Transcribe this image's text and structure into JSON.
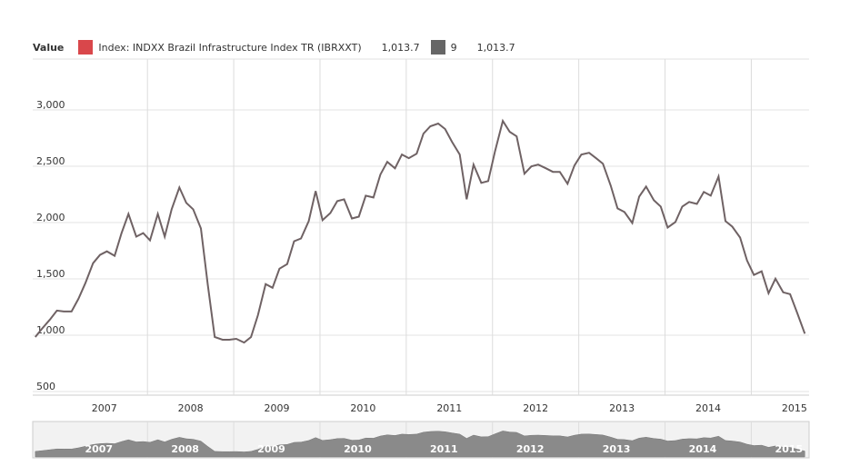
{
  "chart_data": {
    "type": "line",
    "legend_title": "Value",
    "legend": [
      {
        "name": "Index: INDXX Brazil Infrastructure Index TR (IBRXXT)",
        "color": "#d9474b",
        "last_value": {
          "value": 1013.7,
          "label": "1,013.7"
        }
      },
      {
        "name": "9",
        "color": "#666666",
        "last_value": {
          "value": 1013.7,
          "label": "1,013.7"
        }
      }
    ],
    "x": [
      2006.7,
      2006.78,
      2006.87,
      2006.95,
      2007.03,
      2007.12,
      2007.2,
      2007.28,
      2007.37,
      2007.45,
      2007.53,
      2007.62,
      2007.7,
      2007.78,
      2007.87,
      2007.95,
      2008.03,
      2008.12,
      2008.2,
      2008.28,
      2008.37,
      2008.45,
      2008.53,
      2008.62,
      2008.7,
      2008.78,
      2008.87,
      2008.95,
      2009.03,
      2009.12,
      2009.2,
      2009.28,
      2009.37,
      2009.45,
      2009.53,
      2009.62,
      2009.7,
      2009.78,
      2009.87,
      2009.95,
      2010.03,
      2010.12,
      2010.2,
      2010.28,
      2010.37,
      2010.45,
      2010.53,
      2010.62,
      2010.7,
      2010.78,
      2010.87,
      2010.95,
      2011.03,
      2011.12,
      2011.2,
      2011.28,
      2011.37,
      2011.45,
      2011.53,
      2011.62,
      2011.7,
      2011.78,
      2011.87,
      2011.95,
      2012.03,
      2012.12,
      2012.2,
      2012.28,
      2012.37,
      2012.45,
      2012.53,
      2012.62,
      2012.7,
      2012.78,
      2012.87,
      2012.95,
      2013.03,
      2013.12,
      2013.2,
      2013.28,
      2013.37,
      2013.45,
      2013.53,
      2013.62,
      2013.7,
      2013.78,
      2013.87,
      2013.95,
      2014.03,
      2014.12,
      2014.2,
      2014.28,
      2014.37,
      2014.45,
      2014.53,
      2014.62,
      2014.7,
      2014.78,
      2014.87,
      2014.95,
      2015.03,
      2015.12,
      2015.2,
      2015.28,
      2015.37,
      2015.45,
      2015.53,
      2015.62
    ],
    "series": [
      {
        "name": "Index: INDXX Brazil Infrastructure Index TR (IBRXXT)",
        "color": "#6f6264",
        "values": [
          984,
          1060,
          1140,
          1219,
          1211,
          1211,
          1324,
          1462,
          1640,
          1713,
          1745,
          1705,
          1907,
          2077,
          1875,
          1907,
          1842,
          2077,
          1875,
          2118,
          2312,
          2175,
          2118,
          1948,
          1446,
          984,
          960,
          960,
          968,
          935,
          984,
          1178,
          1454,
          1421,
          1591,
          1632,
          1834,
          1859,
          2013,
          2280,
          2021,
          2085,
          2191,
          2207,
          2037,
          2053,
          2239,
          2223,
          2426,
          2539,
          2482,
          2604,
          2572,
          2612,
          2790,
          2855,
          2879,
          2831,
          2717,
          2604,
          2207,
          2515,
          2353,
          2369,
          2636,
          2903,
          2806,
          2766,
          2434,
          2499,
          2515,
          2482,
          2450,
          2450,
          2345,
          2507,
          2604,
          2620,
          2572,
          2523,
          2328,
          2126,
          2094,
          1996,
          2231,
          2320,
          2199,
          2142,
          1956,
          2004,
          2142,
          2183,
          2166,
          2272,
          2239,
          2409,
          2013,
          1964,
          1867,
          1664,
          1535,
          1567,
          1373,
          1502,
          1381,
          1365,
          1203,
          1013.7
        ]
      }
    ],
    "xlim": [
      2006.67,
      2015.67
    ],
    "xticks": [
      {
        "value": 2007.5,
        "label": "2007"
      },
      {
        "value": 2008.5,
        "label": "2008"
      },
      {
        "value": 2009.5,
        "label": "2009"
      },
      {
        "value": 2010.5,
        "label": "2010"
      },
      {
        "value": 2011.5,
        "label": "2011"
      },
      {
        "value": 2012.5,
        "label": "2012"
      },
      {
        "value": 2013.5,
        "label": "2013"
      },
      {
        "value": 2014.5,
        "label": "2014"
      },
      {
        "value": 2015.5,
        "label": "2015"
      }
    ],
    "xgrid": [
      2008,
      2009,
      2010,
      2011,
      2012,
      2013,
      2014,
      2015
    ],
    "ylim": [
      468,
      3452
    ],
    "yticks": [
      500,
      {
        "value": 1000,
        "label": "1,000"
      },
      {
        "value": 1500,
        "label": "1,500"
      },
      {
        "value": 2000,
        "label": "2,000"
      },
      {
        "value": 2500,
        "label": "2,500"
      },
      {
        "value": 3000,
        "label": "3,000"
      }
    ],
    "grid": true,
    "navigator": {
      "color": "#8a8a8a",
      "labels": [
        {
          "value": 2007.5,
          "label": "2007"
        },
        {
          "value": 2008.5,
          "label": "2008"
        },
        {
          "value": 2009.5,
          "label": "2009"
        },
        {
          "value": 2010.5,
          "label": "2010"
        },
        {
          "value": 2011.5,
          "label": "2011"
        },
        {
          "value": 2012.5,
          "label": "2012"
        },
        {
          "value": 2013.5,
          "label": "2013"
        },
        {
          "value": 2014.5,
          "label": "2014"
        },
        {
          "value": 2015.5,
          "label": "2015"
        }
      ]
    }
  }
}
